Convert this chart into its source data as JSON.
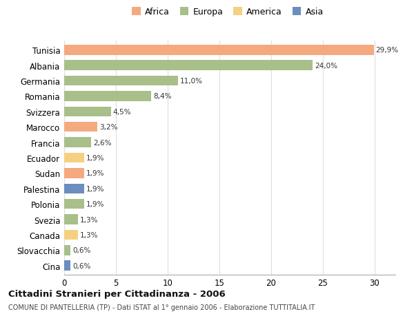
{
  "countries": [
    "Tunisia",
    "Albania",
    "Germania",
    "Romania",
    "Svizzera",
    "Marocco",
    "Francia",
    "Ecuador",
    "Sudan",
    "Palestina",
    "Polonia",
    "Svezia",
    "Canada",
    "Slovacchia",
    "Cina"
  ],
  "values": [
    29.9,
    24.0,
    11.0,
    8.4,
    4.5,
    3.2,
    2.6,
    1.9,
    1.9,
    1.9,
    1.9,
    1.3,
    1.3,
    0.6,
    0.6
  ],
  "labels": [
    "29,9%",
    "24,0%",
    "11,0%",
    "8,4%",
    "4,5%",
    "3,2%",
    "2,6%",
    "1,9%",
    "1,9%",
    "1,9%",
    "1,9%",
    "1,3%",
    "1,3%",
    "0,6%",
    "0,6%"
  ],
  "colors": [
    "#F4A97F",
    "#A8BF8A",
    "#A8BF8A",
    "#A8BF8A",
    "#A8BF8A",
    "#F4A97F",
    "#A8BF8A",
    "#F5D080",
    "#F4A97F",
    "#6B8DBF",
    "#A8BF8A",
    "#A8BF8A",
    "#F5D080",
    "#A8BF8A",
    "#6B8DBF"
  ],
  "legend_labels": [
    "Africa",
    "Europa",
    "America",
    "Asia"
  ],
  "legend_colors": [
    "#F4A97F",
    "#A8BF8A",
    "#F5D080",
    "#6B8DBF"
  ],
  "title": "Cittadini Stranieri per Cittadinanza - 2006",
  "subtitle": "COMUNE DI PANTELLERIA (TP) - Dati ISTAT al 1° gennaio 2006 - Elaborazione TUTTITALIA.IT",
  "xlim": [
    0,
    32
  ],
  "xticks": [
    0,
    5,
    10,
    15,
    20,
    25,
    30
  ],
  "bg_color": "#FFFFFF",
  "grid_color": "#DDDDDD",
  "bar_height": 0.65
}
